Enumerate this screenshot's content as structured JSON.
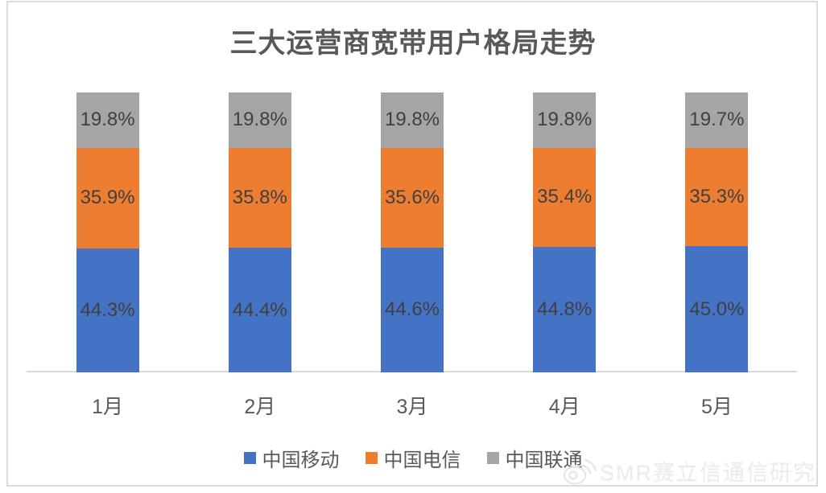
{
  "chart_title": "三大运营商宽带用户格局走势",
  "watermark": {
    "text": "SMR赛立信通信研究",
    "icon": "weibo-icon"
  },
  "colors": {
    "china_mobile_blue": "#4472C4",
    "china_telecom_orange": "#ED7D31",
    "china_unicom_gray": "#A5A5A5",
    "data_label_text": "#404040",
    "axis_text": "#595959",
    "frame_border": "#DCDCDC",
    "axis_line": "#D9D9D9"
  },
  "chart_data": {
    "type": "bar",
    "subtype": "stacked",
    "stacked": true,
    "title": "三大运营商宽带用户格局走势",
    "xlabel": "",
    "ylabel": "",
    "grid": false,
    "legend_position": "bottom",
    "value_format": "percent",
    "categories": [
      "1月",
      "2月",
      "3月",
      "4月",
      "5月"
    ],
    "series": [
      {
        "key": "china-mobile",
        "name": "中国移动",
        "color": "#4472C4",
        "values": [
          44.3,
          44.4,
          44.6,
          44.8,
          45.0
        ],
        "labels": [
          "44.3%",
          "44.4%",
          "44.6%",
          "44.8%",
          "45.0%"
        ]
      },
      {
        "key": "china-telecom",
        "name": "中国电信",
        "color": "#ED7D31",
        "values": [
          35.9,
          35.8,
          35.6,
          35.4,
          35.3
        ],
        "labels": [
          "35.9%",
          "35.8%",
          "35.6%",
          "35.4%",
          "35.3%"
        ]
      },
      {
        "key": "china-unicom",
        "name": "中国联通",
        "color": "#A5A5A5",
        "values": [
          19.8,
          19.8,
          19.8,
          19.8,
          19.7
        ],
        "labels": [
          "19.8%",
          "19.8%",
          "19.8%",
          "19.8%",
          "19.7%"
        ]
      }
    ]
  }
}
